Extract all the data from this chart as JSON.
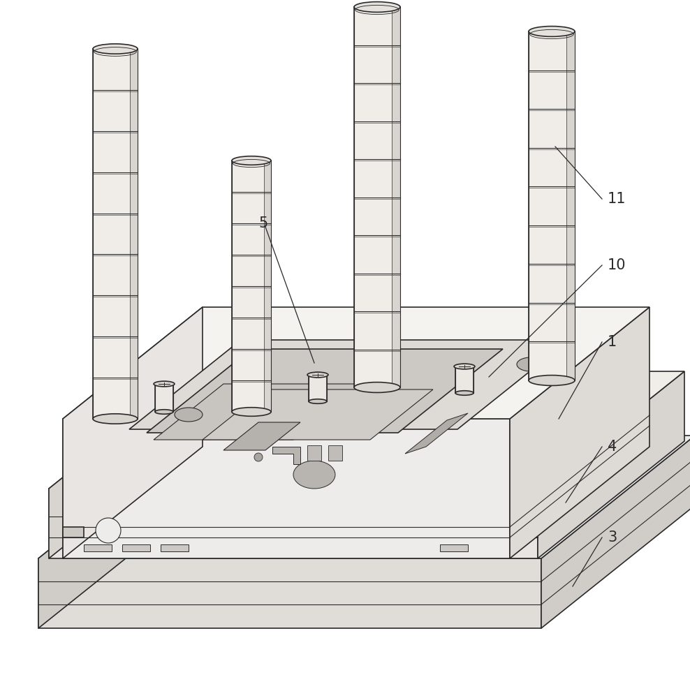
{
  "bg_color": "#ffffff",
  "line_color": "#2a2a2a",
  "figsize": [
    9.88,
    10.0
  ],
  "dpi": 100,
  "label_fontsize": 15,
  "body_face_front": "#eeecea",
  "body_face_right": "#dedad6",
  "body_face_top": "#f5f3f0",
  "body_face_left": "#e8e5e2",
  "plate4_front": "#e8e5e2",
  "plate4_right": "#d8d4d0",
  "plate4_top": "#f0eee9",
  "slab3_front": "#e0ddd8",
  "slab3_right": "#d0cdc8",
  "slab3_top": "#ebebea",
  "pin_body": "#f0ede8",
  "pin_shade": "#e0ddd8",
  "cavity_fill": "#dedad5",
  "cavity_inner": "#ccc9c4"
}
